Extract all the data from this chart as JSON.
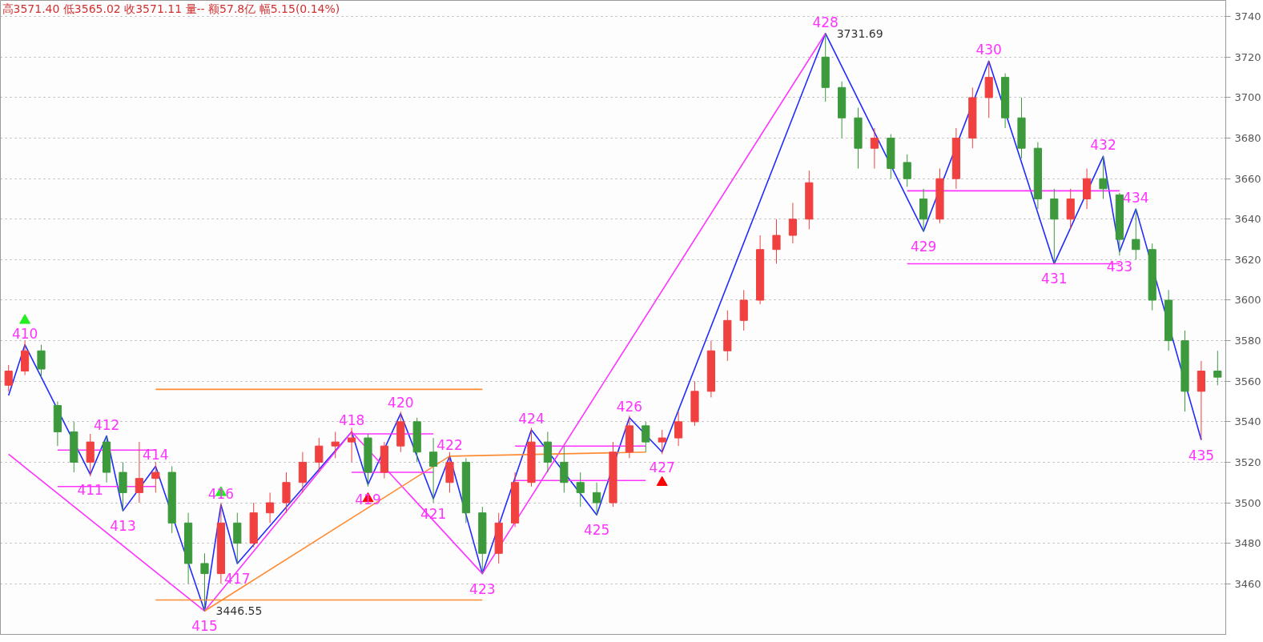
{
  "chart_data": {
    "type": "candlestick",
    "categories": [
      null,
      null,
      null,
      null,
      null,
      null,
      null,
      null,
      null,
      null,
      null,
      null,
      null,
      null,
      null,
      null,
      null,
      null,
      null,
      null,
      null,
      null,
      null,
      null,
      null,
      null,
      null,
      null,
      null,
      null,
      null,
      null,
      null,
      null,
      null,
      null,
      null,
      null,
      null,
      null,
      null,
      null,
      null,
      null,
      null,
      null,
      null,
      null,
      null,
      null,
      null,
      null,
      null,
      null,
      null,
      null,
      null,
      null,
      null,
      null,
      null,
      null,
      null,
      null,
      null,
      null,
      null,
      null,
      null,
      null,
      null,
      null,
      null,
      null,
      null
    ],
    "ohlc": [
      [
        3558,
        3568,
        3555,
        3565
      ],
      [
        3565,
        3580,
        3563,
        3575
      ],
      [
        3575,
        3578,
        3562,
        3566
      ],
      [
        3548,
        3550,
        3528,
        3535
      ],
      [
        3535,
        3540,
        3515,
        3520
      ],
      [
        3520,
        3534,
        3513,
        3530
      ],
      [
        3530,
        3533,
        3510,
        3515
      ],
      [
        3515,
        3520,
        3496,
        3505
      ],
      [
        3505,
        3530,
        3500,
        3512
      ],
      [
        3512,
        3520,
        3505,
        3515
      ],
      [
        3515,
        3518,
        3485,
        3490
      ],
      [
        3490,
        3495,
        3460,
        3470
      ],
      [
        3470,
        3475,
        3446.55,
        3465
      ],
      [
        3465,
        3500,
        3460,
        3490
      ],
      [
        3490,
        3495,
        3470,
        3480
      ],
      [
        3480,
        3500,
        3478,
        3495
      ],
      [
        3495,
        3505,
        3490,
        3500
      ],
      [
        3500,
        3515,
        3495,
        3510
      ],
      [
        3510,
        3525,
        3505,
        3520
      ],
      [
        3520,
        3532,
        3515,
        3528
      ],
      [
        3528,
        3535,
        3522,
        3530
      ],
      [
        3530,
        3537,
        3520,
        3532
      ],
      [
        3532,
        3534,
        3508,
        3515
      ],
      [
        3515,
        3530,
        3512,
        3528
      ],
      [
        3528,
        3545,
        3525,
        3540
      ],
      [
        3540,
        3542,
        3520,
        3525
      ],
      [
        3525,
        3532,
        3500,
        3518
      ],
      [
        3510,
        3525,
        3505,
        3520
      ],
      [
        3520,
        3522,
        3490,
        3495
      ],
      [
        3495,
        3498,
        3465,
        3475
      ],
      [
        3475,
        3495,
        3470,
        3490
      ],
      [
        3490,
        3515,
        3488,
        3510
      ],
      [
        3510,
        3537,
        3508,
        3530
      ],
      [
        3530,
        3535,
        3515,
        3520
      ],
      [
        3520,
        3528,
        3505,
        3510
      ],
      [
        3510,
        3515,
        3498,
        3505
      ],
      [
        3505,
        3510,
        3494,
        3500
      ],
      [
        3500,
        3530,
        3498,
        3525
      ],
      [
        3525,
        3543,
        3522,
        3538
      ],
      [
        3538,
        3540,
        3525,
        3530
      ],
      [
        3530,
        3536,
        3524,
        3532
      ],
      [
        3532,
        3545,
        3528,
        3540
      ],
      [
        3540,
        3560,
        3538,
        3555
      ],
      [
        3555,
        3580,
        3552,
        3575
      ],
      [
        3575,
        3595,
        3570,
        3590
      ],
      [
        3590,
        3605,
        3585,
        3600
      ],
      [
        3600,
        3632,
        3598,
        3625
      ],
      [
        3625,
        3640,
        3618,
        3632
      ],
      [
        3632,
        3648,
        3628,
        3640
      ],
      [
        3640,
        3664,
        3635,
        3658
      ],
      [
        3720,
        3731.69,
        3698,
        3705
      ],
      [
        3705,
        3708,
        3680,
        3690
      ],
      [
        3690,
        3695,
        3665,
        3675
      ],
      [
        3675,
        3685,
        3665,
        3680
      ],
      [
        3680,
        3682,
        3660,
        3665
      ],
      [
        3668,
        3672,
        3656,
        3660
      ],
      [
        3650,
        3655,
        3634,
        3640
      ],
      [
        3640,
        3665,
        3638,
        3660
      ],
      [
        3660,
        3685,
        3655,
        3680
      ],
      [
        3680,
        3705,
        3675,
        3700
      ],
      [
        3700,
        3718,
        3690,
        3710
      ],
      [
        3710,
        3712,
        3685,
        3690
      ],
      [
        3690,
        3700,
        3670,
        3675
      ],
      [
        3675,
        3678,
        3645,
        3650
      ],
      [
        3650,
        3655,
        3618,
        3640
      ],
      [
        3640,
        3655,
        3635,
        3650
      ],
      [
        3650,
        3665,
        3645,
        3660
      ],
      [
        3660,
        3671,
        3650,
        3655
      ],
      [
        3652,
        3653,
        3622,
        3630
      ],
      [
        3630,
        3645,
        3620,
        3625
      ],
      [
        3625,
        3628,
        3595,
        3600
      ],
      [
        3600,
        3605,
        3575,
        3580
      ],
      [
        3580,
        3585,
        3545,
        3555
      ],
      [
        3555,
        3570,
        3531,
        3565
      ],
      [
        3565,
        3575,
        3558,
        3562
      ]
    ],
    "colors": [
      "#f04040",
      "#f04040",
      "#3c9a3c",
      "#3c9a3c",
      "#3c9a3c",
      "#f04040",
      "#3c9a3c",
      "#3c9a3c",
      "#f04040",
      "#f04040",
      "#3c9a3c",
      "#3c9a3c",
      "#3c9a3c",
      "#f04040",
      "#3c9a3c",
      "#f04040",
      "#f04040",
      "#f04040",
      "#f04040",
      "#f04040",
      "#f04040",
      "#f04040",
      "#3c9a3c",
      "#f04040",
      "#f04040",
      "#3c9a3c",
      "#3c9a3c",
      "#f04040",
      "#3c9a3c",
      "#3c9a3c",
      "#f04040",
      "#f04040",
      "#f04040",
      "#3c9a3c",
      "#3c9a3c",
      "#3c9a3c",
      "#3c9a3c",
      "#f04040",
      "#f04040",
      "#3c9a3c",
      "#f04040",
      "#f04040",
      "#f04040",
      "#f04040",
      "#f04040",
      "#f04040",
      "#f04040",
      "#f04040",
      "#f04040",
      "#f04040",
      "#3c9a3c",
      "#3c9a3c",
      "#3c9a3c",
      "#f04040",
      "#3c9a3c",
      "#3c9a3c",
      "#3c9a3c",
      "#f04040",
      "#f04040",
      "#f04040",
      "#f04040",
      "#3c9a3c",
      "#3c9a3c",
      "#3c9a3c",
      "#3c9a3c",
      "#f04040",
      "#f04040",
      "#3c9a3c",
      "#3c9a3c",
      "#3c9a3c",
      "#3c9a3c",
      "#3c9a3c",
      "#3c9a3c",
      "#f04040",
      "#3c9a3c"
    ],
    "series": [
      {
        "type": "line",
        "color": "#1f2bff",
        "values": [
          3553,
          3578,
          null,
          null,
          null,
          3514,
          3533,
          3496,
          null,
          3518,
          null,
          null,
          3446.55,
          3499,
          3470,
          null,
          null,
          null,
          null,
          null,
          null,
          3535,
          3509,
          null,
          3544,
          null,
          3502,
          3523,
          null,
          3465,
          null,
          null,
          3536,
          null,
          null,
          null,
          3494,
          null,
          3542,
          null,
          3525,
          null,
          null,
          null,
          null,
          null,
          null,
          null,
          null,
          null,
          3731.69,
          null,
          null,
          null,
          null,
          null,
          3634,
          null,
          null,
          null,
          3718,
          null,
          null,
          null,
          3618,
          null,
          null,
          3671,
          3624,
          3645,
          null,
          null,
          null,
          3531,
          null
        ],
        "value_labels": [
          null,
          null,
          null,
          null,
          null,
          null,
          null,
          null,
          null,
          null,
          null,
          null,
          "3446.55",
          null,
          null,
          null,
          null,
          null,
          null,
          null,
          null,
          null,
          null,
          null,
          null,
          null,
          null,
          null,
          null,
          null,
          null,
          null,
          null,
          null,
          null,
          null,
          null,
          null,
          null,
          null,
          null,
          null,
          null,
          null,
          null,
          null,
          null,
          null,
          null,
          null,
          "3731.69",
          null,
          null,
          null,
          null,
          null,
          null,
          null,
          null,
          null,
          null,
          null,
          null,
          null,
          null,
          null,
          null,
          null,
          null,
          null,
          null,
          null,
          null,
          null,
          null
        ]
      },
      {
        "type": "line",
        "color": "#ff33ff",
        "values": [
          3524,
          null,
          null,
          null,
          null,
          null,
          null,
          null,
          null,
          null,
          null,
          null,
          3446.55,
          null,
          null,
          null,
          null,
          null,
          null,
          null,
          null,
          3535,
          null,
          null,
          null,
          null,
          null,
          null,
          null,
          3465,
          null,
          null,
          null,
          null,
          null,
          null,
          null,
          null,
          null,
          null,
          null,
          null,
          null,
          null,
          null,
          null,
          null,
          null,
          null,
          null,
          3731.69,
          null,
          null,
          null,
          null,
          null,
          null,
          null,
          null,
          null,
          null,
          null,
          null,
          null,
          null,
          null,
          null,
          null,
          null,
          null,
          null,
          null,
          null,
          null,
          null
        ]
      },
      {
        "type": "line",
        "color": "#ff8c33",
        "values": [
          null,
          null,
          null,
          null,
          null,
          null,
          null,
          null,
          null,
          null,
          null,
          null,
          3446.55,
          null,
          null,
          null,
          null,
          null,
          null,
          null,
          null,
          null,
          null,
          null,
          null,
          null,
          null,
          3523,
          null,
          null,
          null,
          null,
          null,
          null,
          null,
          null,
          null,
          null,
          null,
          3525,
          null,
          null,
          null,
          null,
          null,
          null,
          null,
          null,
          null,
          null,
          null,
          null,
          null,
          null,
          null,
          null,
          null,
          null,
          null,
          null,
          null,
          null,
          null,
          null,
          null,
          null,
          null,
          null,
          null,
          null,
          null,
          null,
          null,
          null,
          null
        ]
      },
      {
        "type": "line",
        "color": "#ff33ff",
        "values": [
          null,
          null,
          null,
          3526,
          null,
          null,
          null,
          null,
          null,
          3526,
          null,
          null,
          null,
          null,
          null,
          null,
          null,
          null,
          null,
          null,
          null,
          null,
          null,
          null,
          null,
          null,
          null,
          null,
          null,
          null,
          null,
          null,
          null,
          null,
          null,
          null,
          null,
          null,
          null,
          null,
          null,
          null,
          null,
          null,
          null,
          null,
          null,
          null,
          null,
          null,
          null,
          null,
          null,
          null,
          null,
          null,
          null,
          null,
          null,
          null,
          null,
          null,
          null,
          null,
          null,
          null,
          null,
          null,
          null,
          null,
          null,
          null,
          null,
          null,
          null
        ]
      },
      {
        "type": "line",
        "color": "#ff33ff",
        "values": [
          null,
          null,
          null,
          3508,
          null,
          null,
          null,
          null,
          null,
          3508,
          null,
          null,
          null,
          null,
          null,
          null,
          null,
          null,
          null,
          null,
          null,
          null,
          null,
          null,
          null,
          null,
          null,
          null,
          null,
          null,
          null,
          null,
          null,
          null,
          null,
          null,
          null,
          null,
          null,
          null,
          null,
          null,
          null,
          null,
          null,
          null,
          null,
          null,
          null,
          null,
          null,
          null,
          null,
          null,
          null,
          null,
          null,
          null,
          null,
          null,
          null,
          null,
          null,
          null,
          null,
          null,
          null,
          null,
          null,
          null,
          null,
          null,
          null,
          null,
          null
        ]
      },
      {
        "type": "line",
        "color": "#ff33ff",
        "values": [
          null,
          null,
          null,
          null,
          null,
          null,
          null,
          null,
          null,
          null,
          null,
          null,
          null,
          null,
          null,
          null,
          null,
          null,
          null,
          null,
          null,
          3534,
          null,
          null,
          null,
          null,
          3534,
          null,
          null,
          null,
          null,
          null,
          null,
          null,
          null,
          null,
          null,
          null,
          null,
          null,
          null,
          null,
          null,
          null,
          null,
          null,
          null,
          null,
          null,
          null,
          null,
          null,
          null,
          null,
          null,
          null,
          null,
          null,
          null,
          null,
          null,
          null,
          null,
          null,
          null,
          null,
          null,
          null,
          null,
          null,
          null,
          null,
          null,
          null,
          null
        ]
      },
      {
        "type": "line",
        "color": "#ff33ff",
        "values": [
          null,
          null,
          null,
          null,
          null,
          null,
          null,
          null,
          null,
          null,
          null,
          null,
          null,
          null,
          null,
          null,
          null,
          null,
          null,
          null,
          null,
          3515,
          null,
          null,
          null,
          null,
          3515,
          null,
          null,
          null,
          null,
          null,
          null,
          null,
          null,
          null,
          null,
          null,
          null,
          null,
          null,
          null,
          null,
          null,
          null,
          null,
          null,
          null,
          null,
          null,
          null,
          null,
          null,
          null,
          null,
          null,
          null,
          null,
          null,
          null,
          null,
          null,
          null,
          null,
          null,
          null,
          null,
          null,
          null,
          null,
          null,
          null,
          null,
          null,
          null
        ]
      },
      {
        "type": "line",
        "color": "#ff33ff",
        "values": [
          null,
          null,
          null,
          null,
          null,
          null,
          null,
          null,
          null,
          null,
          null,
          null,
          null,
          null,
          null,
          null,
          null,
          null,
          null,
          null,
          null,
          null,
          null,
          null,
          null,
          null,
          null,
          null,
          null,
          null,
          null,
          3528,
          null,
          null,
          null,
          null,
          null,
          null,
          null,
          3528,
          null,
          null,
          null,
          null,
          null,
          null,
          null,
          null,
          null,
          null,
          null,
          null,
          null,
          null,
          null,
          null,
          null,
          null,
          null,
          null,
          null,
          null,
          null,
          null,
          null,
          null,
          null,
          null,
          null,
          null,
          null,
          null,
          null,
          null,
          null
        ]
      },
      {
        "type": "line",
        "color": "#ff33ff",
        "values": [
          null,
          null,
          null,
          null,
          null,
          null,
          null,
          null,
          null,
          null,
          null,
          null,
          null,
          null,
          null,
          null,
          null,
          null,
          null,
          null,
          null,
          null,
          null,
          null,
          null,
          null,
          null,
          null,
          null,
          null,
          null,
          3511,
          null,
          null,
          null,
          null,
          null,
          null,
          null,
          3511,
          null,
          null,
          null,
          null,
          null,
          null,
          null,
          null,
          null,
          null,
          null,
          null,
          null,
          null,
          null,
          null,
          null,
          null,
          null,
          null,
          null,
          null,
          null,
          null,
          null,
          null,
          null,
          null,
          null,
          null,
          null,
          null,
          null,
          null,
          null
        ]
      },
      {
        "type": "line",
        "color": "#ff33ff",
        "values": [
          null,
          null,
          null,
          null,
          null,
          null,
          null,
          null,
          null,
          null,
          null,
          null,
          null,
          null,
          null,
          null,
          null,
          null,
          null,
          null,
          null,
          null,
          null,
          null,
          null,
          null,
          null,
          null,
          null,
          null,
          null,
          null,
          null,
          null,
          null,
          null,
          null,
          null,
          null,
          null,
          null,
          null,
          null,
          null,
          null,
          null,
          null,
          null,
          null,
          null,
          null,
          null,
          null,
          null,
          null,
          3654,
          null,
          null,
          null,
          null,
          null,
          null,
          null,
          null,
          null,
          null,
          null,
          null,
          3654,
          null,
          null,
          null,
          null,
          null,
          null
        ]
      },
      {
        "type": "line",
        "color": "#ff33ff",
        "values": [
          null,
          null,
          null,
          null,
          null,
          null,
          null,
          null,
          null,
          null,
          null,
          null,
          null,
          null,
          null,
          null,
          null,
          null,
          null,
          null,
          null,
          null,
          null,
          null,
          null,
          null,
          null,
          null,
          null,
          null,
          null,
          null,
          null,
          null,
          null,
          null,
          null,
          null,
          null,
          null,
          null,
          null,
          null,
          null,
          null,
          null,
          null,
          null,
          null,
          null,
          null,
          null,
          null,
          null,
          null,
          3618,
          null,
          null,
          null,
          null,
          null,
          null,
          null,
          null,
          null,
          null,
          null,
          null,
          3618,
          null,
          null,
          null,
          null,
          null,
          null
        ]
      },
      {
        "type": "line",
        "color": "#ff8c33",
        "values": [
          null,
          null,
          null,
          null,
          null,
          null,
          null,
          null,
          null,
          3556,
          null,
          null,
          null,
          null,
          null,
          null,
          null,
          null,
          null,
          null,
          null,
          null,
          null,
          null,
          null,
          null,
          null,
          null,
          null,
          3556,
          null,
          null,
          null,
          null,
          null,
          null,
          null,
          null,
          null,
          null,
          null,
          null,
          null,
          null,
          null,
          null,
          null,
          null,
          null,
          null,
          null,
          null,
          null,
          null,
          null,
          null,
          null,
          null,
          null,
          null,
          null,
          null,
          null,
          null,
          null,
          null,
          null,
          null,
          null,
          null,
          null,
          null,
          null,
          null,
          null
        ]
      },
      {
        "type": "line",
        "color": "#ff8c33",
        "values": [
          null,
          null,
          null,
          null,
          null,
          null,
          null,
          null,
          null,
          3452,
          null,
          null,
          null,
          null,
          null,
          null,
          null,
          null,
          null,
          null,
          null,
          null,
          null,
          null,
          null,
          null,
          null,
          null,
          null,
          3452,
          null,
          null,
          null,
          null,
          null,
          null,
          null,
          null,
          null,
          null,
          null,
          null,
          null,
          null,
          null,
          null,
          null,
          null,
          null,
          null,
          null,
          null,
          null,
          null,
          null,
          null,
          null,
          null,
          null,
          null,
          null,
          null,
          null,
          null,
          null,
          null,
          null,
          null,
          null,
          null,
          null,
          null,
          null,
          null,
          null
        ]
      },
      {
        "type": "scatter",
        "color": "#22ee22",
        "marker": "triangle",
        "values": [
          null,
          3590,
          null,
          null,
          null,
          null,
          null,
          null,
          null,
          null,
          null,
          null,
          null,
          3505,
          null,
          null,
          null,
          null,
          null,
          null,
          null,
          null,
          null,
          null,
          null,
          null,
          null,
          null,
          null,
          null,
          null,
          null,
          null,
          null,
          null,
          null,
          null,
          null,
          null,
          null,
          null,
          null,
          null,
          null,
          null,
          null,
          null,
          null,
          null,
          null,
          null,
          null,
          null,
          null,
          null,
          null,
          null,
          null,
          null,
          null,
          null,
          null,
          null,
          null,
          null,
          null,
          null,
          null,
          null,
          null,
          null,
          null,
          null,
          null,
          null
        ]
      },
      {
        "type": "scatter",
        "color": "#ff0000",
        "marker": "triangle",
        "values": [
          null,
          null,
          null,
          null,
          null,
          null,
          null,
          null,
          null,
          null,
          null,
          null,
          null,
          null,
          null,
          null,
          null,
          null,
          null,
          null,
          null,
          null,
          3502,
          null,
          null,
          null,
          null,
          null,
          null,
          null,
          null,
          null,
          null,
          null,
          null,
          null,
          null,
          null,
          null,
          null,
          3510,
          null,
          null,
          null,
          null,
          null,
          null,
          null,
          null,
          null,
          null,
          null,
          null,
          null,
          null,
          null,
          null,
          null,
          null,
          null,
          null,
          null,
          null,
          null,
          null,
          null,
          null,
          null,
          null,
          null,
          null,
          null,
          null,
          null,
          null
        ]
      }
    ],
    "annotations": [
      "高3571.40 低3565.02 收3571.11 量-- 额57.8亿 幅5.15(0.14%)",
      {
        "text": "410",
        "y": 3578
      },
      {
        "text": "411",
        "y": 3514
      },
      {
        "text": "412",
        "y": 3533
      },
      {
        "text": "413",
        "y": 3496
      },
      {
        "text": "414",
        "y": 3518
      },
      {
        "text": "415",
        "y": 3446.55
      },
      {
        "text": "416",
        "y": 3499
      },
      {
        "text": "417",
        "y": 3470
      },
      {
        "text": "418",
        "y": 3535
      },
      {
        "text": "419",
        "y": 3509
      },
      {
        "text": "420",
        "y": 3544
      },
      {
        "text": "421",
        "y": 3502
      },
      {
        "text": "422",
        "y": 3523
      },
      {
        "text": "423",
        "y": 3465
      },
      {
        "text": "424",
        "y": 3536
      },
      {
        "text": "425",
        "y": 3494
      },
      {
        "text": "426",
        "y": 3542
      },
      {
        "text": "427",
        "y": 3525
      },
      {
        "text": "428",
        "y": 3731.69
      },
      {
        "text": "429",
        "y": 3634
      },
      {
        "text": "430",
        "y": 3718
      },
      {
        "text": "431",
        "y": 3618
      },
      {
        "text": "432",
        "y": 3671
      },
      {
        "text": "433",
        "y": 3624
      },
      {
        "text": "434",
        "y": 3645
      },
      {
        "text": "435",
        "y": 3531
      }
    ],
    "ylim": [
      3435,
      3748
    ],
    "yticks": [
      3460,
      3480,
      3500,
      3520,
      3540,
      3560,
      3580,
      3600,
      3620,
      3640,
      3660,
      3680,
      3700,
      3720,
      3740
    ],
    "grid": "y",
    "tick_labels": "y",
    "line_style": "solid"
  }
}
